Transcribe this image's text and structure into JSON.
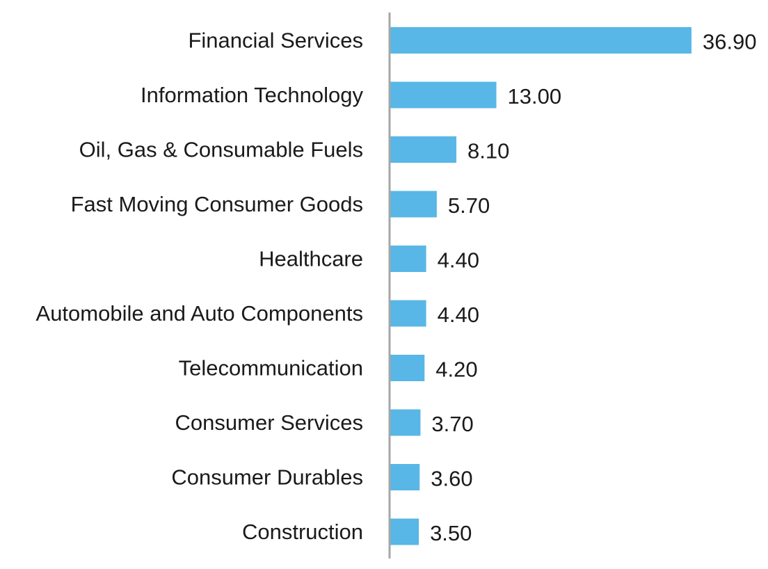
{
  "chart_data": {
    "type": "bar",
    "orientation": "horizontal",
    "categories": [
      "Financial Services",
      "Information Technology",
      "Oil, Gas & Consumable Fuels",
      "Fast Moving Consumer Goods",
      "Healthcare",
      "Automobile and Auto Components",
      "Telecommunication",
      "Consumer Services",
      "Consumer Durables",
      "Construction"
    ],
    "values": [
      36.9,
      13.0,
      8.1,
      5.7,
      4.4,
      4.4,
      4.2,
      3.7,
      3.6,
      3.5
    ],
    "value_labels": [
      "36.90",
      "13.00",
      "8.10",
      "5.70",
      "4.40",
      "4.40",
      "4.20",
      "3.70",
      "3.60",
      "3.50"
    ],
    "title": "",
    "xlabel": "",
    "ylabel": "",
    "xlim": [
      0,
      36.9
    ],
    "grid": false,
    "legend": "none",
    "bar_color": "#58B7E6",
    "axis_color": "#A6A6A6"
  }
}
